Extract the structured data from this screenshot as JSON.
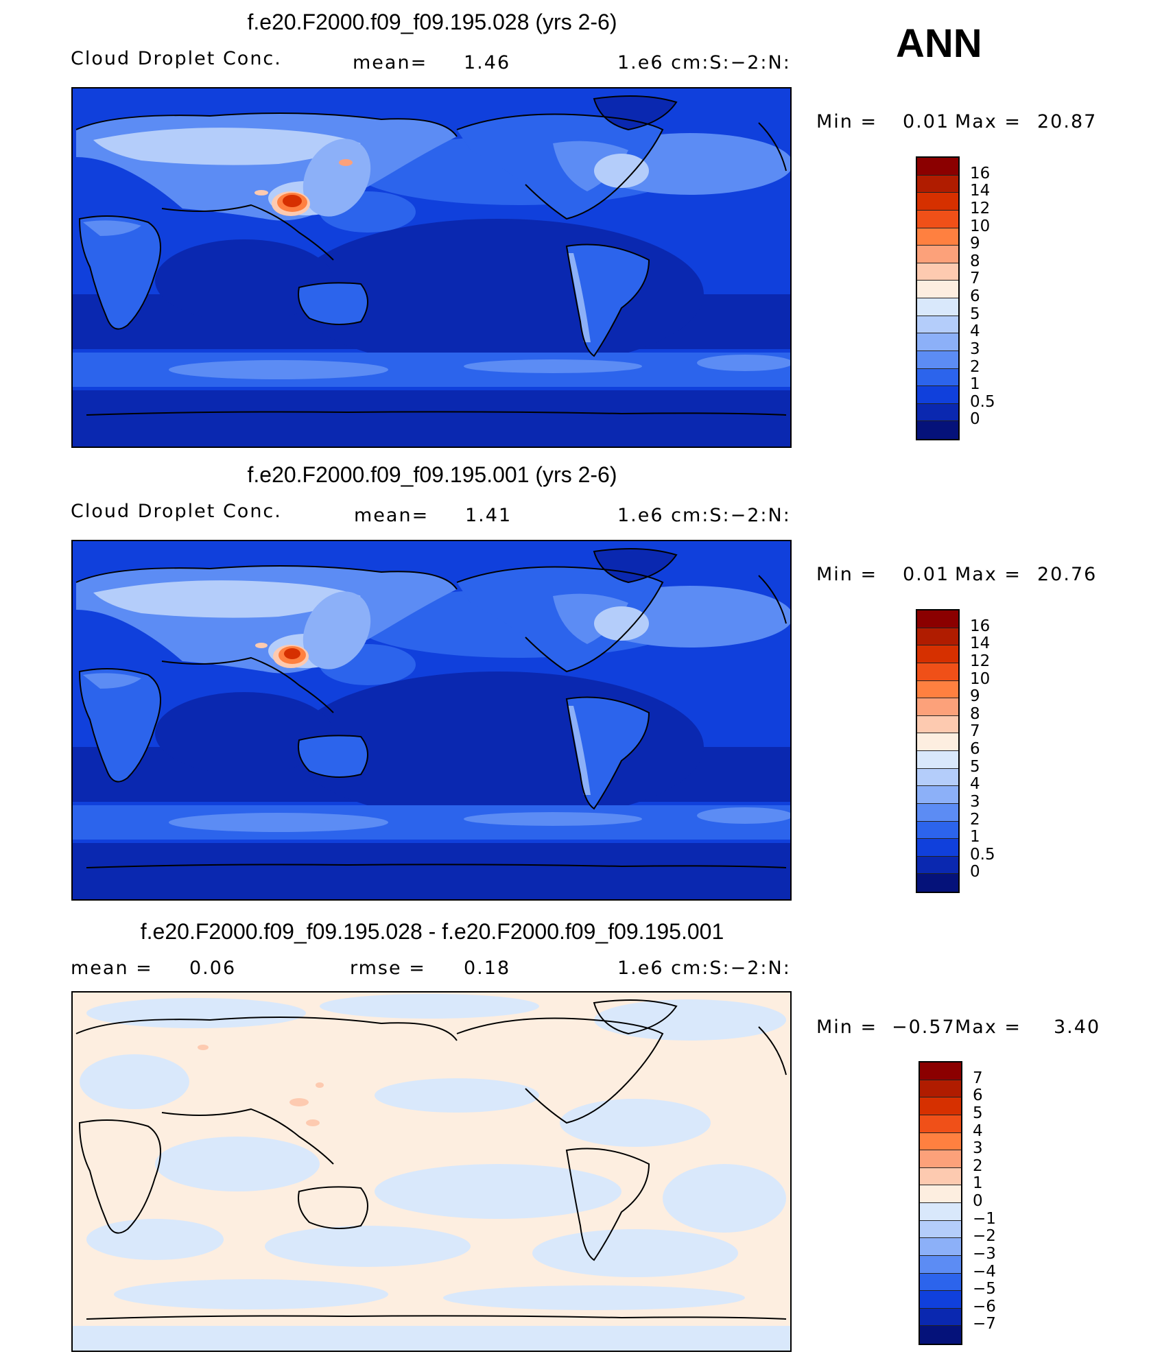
{
  "season": "ANN",
  "panels": [
    {
      "title": "f.e20.F2000.f09_f09.195.028 (yrs 2-6)",
      "left_label": "Cloud Droplet Conc.",
      "stat_label": "mean=",
      "stat_value": "1.46",
      "stat2_label": "",
      "stat2_value": "",
      "units": "1.e6 cm:S:−2:N:",
      "min_label": "Min =",
      "min_value": "0.01",
      "max_label": "Max =",
      "max_value": "20.87",
      "colorbar": {
        "labels": [
          "16",
          "14",
          "12",
          "10",
          "9",
          "8",
          "7",
          "6",
          "5",
          "4",
          "3",
          "2",
          "1",
          "0.5",
          "0"
        ],
        "colors": [
          "#8b0000",
          "#b01c00",
          "#d63000",
          "#f05018",
          "#ff8040",
          "#fca17a",
          "#fdcab0",
          "#fdeee0",
          "#d9e8fb",
          "#b4cdfa",
          "#8cb0f8",
          "#5c8cf4",
          "#2c64ec",
          "#1040dc",
          "#0a28b0",
          "#05127a"
        ]
      }
    },
    {
      "title": "f.e20.F2000.f09_f09.195.001 (yrs 2-6)",
      "left_label": "Cloud Droplet Conc.",
      "stat_label": "mean=",
      "stat_value": "1.41",
      "stat2_label": "",
      "stat2_value": "",
      "units": "1.e6 cm:S:−2:N:",
      "min_label": "Min =",
      "min_value": "0.01",
      "max_label": "Max =",
      "max_value": "20.76",
      "colorbar": {
        "labels": [
          "16",
          "14",
          "12",
          "10",
          "9",
          "8",
          "7",
          "6",
          "5",
          "4",
          "3",
          "2",
          "1",
          "0.5",
          "0"
        ],
        "colors": [
          "#8b0000",
          "#b01c00",
          "#d63000",
          "#f05018",
          "#ff8040",
          "#fca17a",
          "#fdcab0",
          "#fdeee0",
          "#d9e8fb",
          "#b4cdfa",
          "#8cb0f8",
          "#5c8cf4",
          "#2c64ec",
          "#1040dc",
          "#0a28b0",
          "#05127a"
        ]
      }
    },
    {
      "title": "f.e20.F2000.f09_f09.195.028 - f.e20.F2000.f09_f09.195.001",
      "left_label": "",
      "stat_label": "mean =",
      "stat_value": "0.06",
      "stat2_label": "rmse =",
      "stat2_value": "0.18",
      "units": "1.e6 cm:S:−2:N:",
      "min_label": "Min =",
      "min_value": "−0.57",
      "max_label": "Max =",
      "max_value": "3.40",
      "colorbar": {
        "labels": [
          "7",
          "6",
          "5",
          "4",
          "3",
          "2",
          "1",
          "0",
          "−1",
          "−2",
          "−3",
          "−4",
          "−5",
          "−6",
          "−7"
        ],
        "colors": [
          "#8b0000",
          "#b01c00",
          "#d63000",
          "#f05018",
          "#ff8040",
          "#fca17a",
          "#fdcab0",
          "#fdeee0",
          "#d9e8fb",
          "#b4cdfa",
          "#8cb0f8",
          "#5c8cf4",
          "#2c64ec",
          "#1040dc",
          "#0a28b0",
          "#05127a"
        ]
      }
    }
  ],
  "colors": {
    "ocean_dark": "#0a28b0",
    "ocean_mid": "#1040dc",
    "band_light": "#5c8cf4",
    "land_light": "#b4cdfa",
    "hotspot": "#d63000",
    "diff_pos": "#fdeee0",
    "diff_neg": "#d9e8fb"
  }
}
